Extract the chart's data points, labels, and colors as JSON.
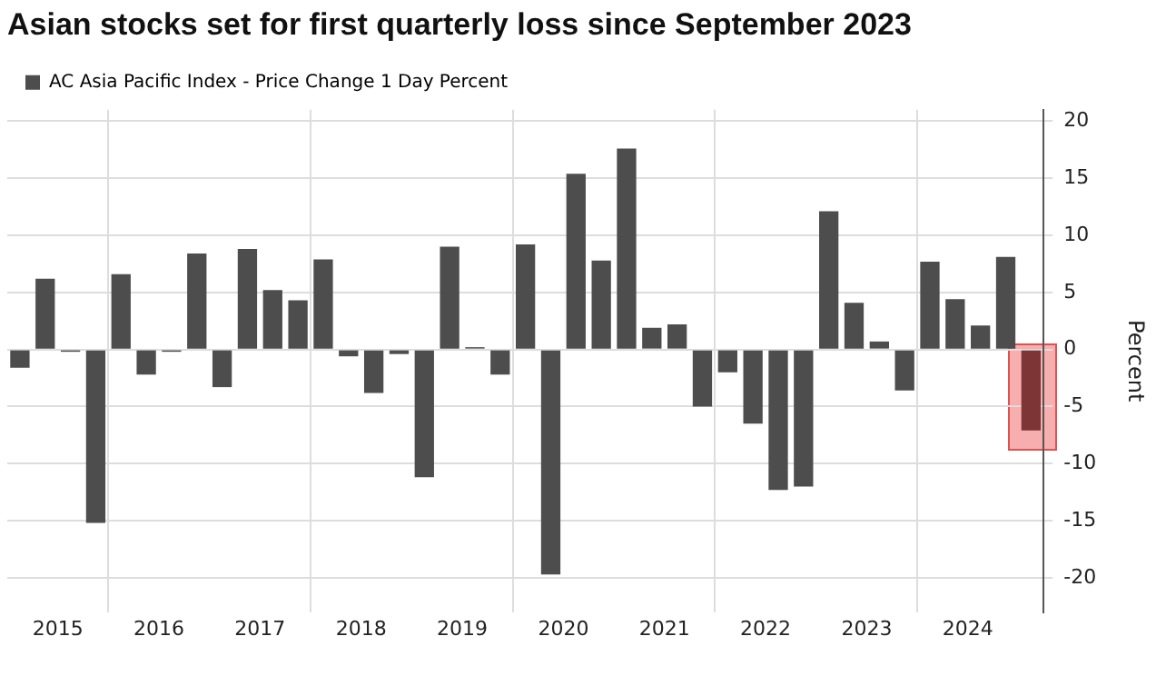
{
  "chart_data": {
    "type": "bar",
    "title": "Asian stocks set for first quarterly loss since September 2023",
    "ylabel": "Percent",
    "categories": [
      null,
      "2015",
      null,
      null,
      null,
      "2016",
      null,
      null,
      null,
      "2017",
      null,
      null,
      null,
      "2018",
      null,
      null,
      null,
      "2019",
      null,
      null,
      null,
      "2020",
      null,
      null,
      null,
      "2021",
      null,
      null,
      null,
      "2022",
      null,
      null,
      null,
      "2023",
      null,
      null,
      null,
      "2024",
      null,
      null,
      null
    ],
    "series": [
      {
        "name": "AC Asia Pacific Index - Price Change 1 Day Percent",
        "color": "#4d4d4d",
        "colors": [
          "#4d4d4d",
          "#4d4d4d",
          "#4d4d4d",
          "#4d4d4d",
          "#4d4d4d",
          "#4d4d4d",
          "#4d4d4d",
          "#4d4d4d",
          "#4d4d4d",
          "#4d4d4d",
          "#4d4d4d",
          "#4d4d4d",
          "#4d4d4d",
          "#4d4d4d",
          "#4d4d4d",
          "#4d4d4d",
          "#4d4d4d",
          "#4d4d4d",
          "#4d4d4d",
          "#4d4d4d",
          "#4d4d4d",
          "#4d4d4d",
          "#4d4d4d",
          "#4d4d4d",
          "#4d4d4d",
          "#4d4d4d",
          "#4d4d4d",
          "#4d4d4d",
          "#4d4d4d",
          "#4d4d4d",
          "#4d4d4d",
          "#4d4d4d",
          "#4d4d4d",
          "#4d4d4d",
          "#4d4d4d",
          "#4d4d4d",
          "#4d4d4d",
          "#4d4d4d",
          "#4d4d4d",
          "#4d4d4d",
          "#7d3535"
        ],
        "values": [
          -1.6,
          6.2,
          -0.2,
          -15.2,
          6.6,
          -2.2,
          -0.2,
          8.4,
          -3.3,
          8.8,
          5.2,
          4.3,
          7.9,
          -0.6,
          -3.8,
          -0.4,
          -11.2,
          9.0,
          0.2,
          -2.2,
          9.2,
          -19.7,
          15.4,
          7.8,
          17.6,
          1.9,
          2.2,
          -5.0,
          -2.0,
          -6.5,
          -12.3,
          -12.0,
          12.1,
          4.1,
          0.7,
          -3.6,
          7.7,
          4.4,
          2.1,
          8.1,
          -7.1
        ]
      }
    ],
    "ylim": [
      -23,
      21
    ],
    "yticks": [
      -20,
      -15,
      -10,
      -5,
      0,
      5,
      10,
      15,
      20
    ],
    "grid": true,
    "legend": "top left"
  }
}
